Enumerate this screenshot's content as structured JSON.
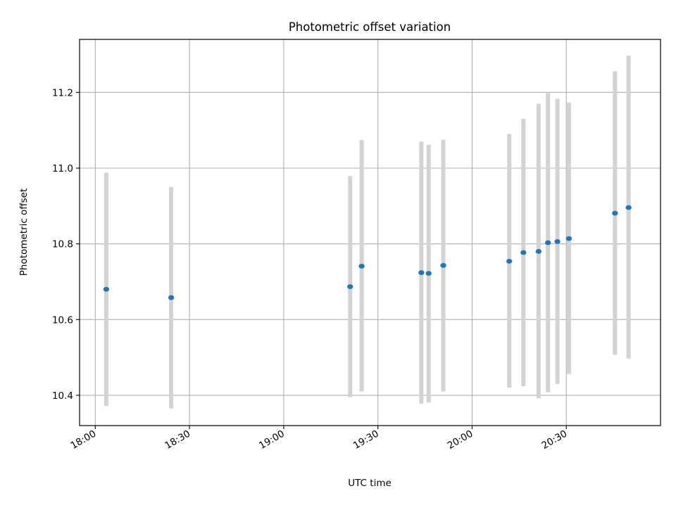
{
  "chart_data": {
    "type": "scatter",
    "title": "Photometric offset variation",
    "xlabel": "UTC time",
    "ylabel": "Photometric offset",
    "xlim": [
      "17:55",
      "21:00"
    ],
    "ylim": [
      10.32,
      11.34
    ],
    "xticks": [
      "18:00",
      "18:30",
      "19:00",
      "19:30",
      "20:00",
      "20:30"
    ],
    "yticks": [
      10.4,
      10.6,
      10.8,
      11.0,
      11.2
    ],
    "grid": true,
    "errorbar_color": "#d3d3d3",
    "point_color": "#1f77b4",
    "points": [
      {
        "x": "18:03:30",
        "y": 10.68,
        "low": 10.372,
        "high": 10.988
      },
      {
        "x": "18:24:10",
        "y": 10.658,
        "low": 10.365,
        "high": 10.95
      },
      {
        "x": "19:21:10",
        "y": 10.687,
        "low": 10.395,
        "high": 10.979
      },
      {
        "x": "19:24:50",
        "y": 10.741,
        "low": 10.41,
        "high": 11.074
      },
      {
        "x": "19:43:50",
        "y": 10.724,
        "low": 10.378,
        "high": 11.07
      },
      {
        "x": "19:46:10",
        "y": 10.722,
        "low": 10.381,
        "high": 11.062
      },
      {
        "x": "19:50:50",
        "y": 10.743,
        "low": 10.41,
        "high": 11.075
      },
      {
        "x": "20:11:50",
        "y": 10.754,
        "low": 10.42,
        "high": 11.09
      },
      {
        "x": "20:16:20",
        "y": 10.777,
        "low": 10.424,
        "high": 11.13
      },
      {
        "x": "20:21:10",
        "y": 10.78,
        "low": 10.392,
        "high": 11.17
      },
      {
        "x": "20:24:10",
        "y": 10.803,
        "low": 10.408,
        "high": 11.198
      },
      {
        "x": "20:27:10",
        "y": 10.806,
        "low": 10.43,
        "high": 11.183
      },
      {
        "x": "20:30:50",
        "y": 10.814,
        "low": 10.456,
        "high": 11.173
      },
      {
        "x": "20:45:30",
        "y": 10.881,
        "low": 10.507,
        "high": 11.256
      },
      {
        "x": "20:49:50",
        "y": 10.896,
        "low": 10.497,
        "high": 11.297
      }
    ]
  }
}
